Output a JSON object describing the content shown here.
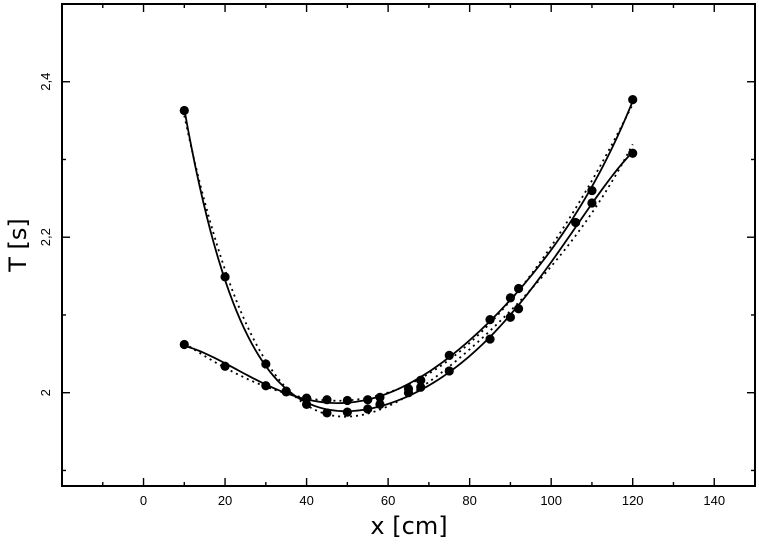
{
  "chart_data": {
    "type": "scatter",
    "title": "",
    "xlabel": "x [cm]",
    "ylabel": "T [s]",
    "xlim": [
      -20,
      150
    ],
    "ylim": [
      1.88,
      2.5
    ],
    "x_ticks": [
      0,
      20,
      40,
      60,
      80,
      100,
      120,
      140
    ],
    "y_ticks": [
      2,
      2.2,
      2.4
    ],
    "x_tick_labels": [
      "0",
      "20",
      "40",
      "60",
      "80",
      "100",
      "120",
      "140"
    ],
    "y_tick_labels": [
      "2",
      "2,2",
      "2,4"
    ],
    "grid": false,
    "legend": "none",
    "series": [
      {
        "points": [
          [
            10,
            2.363
          ],
          [
            20,
            2.149
          ],
          [
            30,
            2.037
          ],
          [
            35,
            2.002
          ],
          [
            40,
            1.985
          ],
          [
            45,
            1.974
          ],
          [
            50,
            1.975
          ],
          [
            55,
            1.979
          ],
          [
            58,
            1.985
          ],
          [
            65,
            2.0
          ],
          [
            68,
            2.007
          ],
          [
            75,
            2.028
          ],
          [
            85,
            2.069
          ],
          [
            90,
            2.097
          ],
          [
            92,
            2.108
          ],
          [
            106,
            2.219
          ],
          [
            110,
            2.244
          ],
          [
            120,
            2.308
          ]
        ]
      },
      {
        "points": [
          [
            10,
            2.062
          ],
          [
            20,
            2.034
          ],
          [
            30,
            2.009
          ],
          [
            35,
            2.001
          ],
          [
            40,
            1.993
          ],
          [
            45,
            1.991
          ],
          [
            50,
            1.99
          ],
          [
            55,
            1.991
          ],
          [
            58,
            1.994
          ],
          [
            65,
            2.005
          ],
          [
            68,
            2.016
          ],
          [
            75,
            2.048
          ],
          [
            85,
            2.094
          ],
          [
            90,
            2.122
          ],
          [
            92,
            2.134
          ],
          [
            110,
            2.26
          ],
          [
            120,
            2.377
          ]
        ]
      }
    ]
  }
}
